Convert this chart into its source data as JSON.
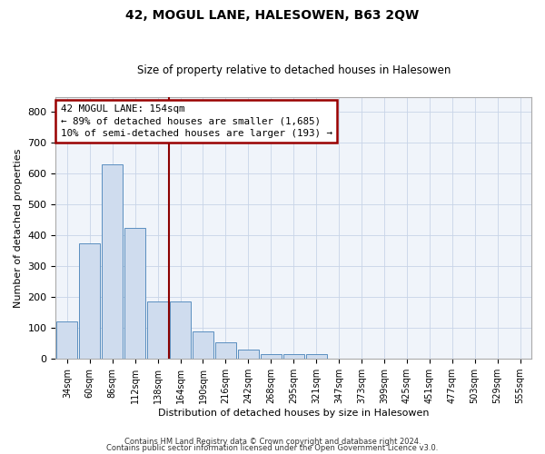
{
  "title": "42, MOGUL LANE, HALESOWEN, B63 2QW",
  "subtitle": "Size of property relative to detached houses in Halesowen",
  "xlabel": "Distribution of detached houses by size in Halesowen",
  "ylabel": "Number of detached properties",
  "bar_labels": [
    "34sqm",
    "60sqm",
    "86sqm",
    "112sqm",
    "138sqm",
    "164sqm",
    "190sqm",
    "216sqm",
    "242sqm",
    "268sqm",
    "295sqm",
    "321sqm",
    "347sqm",
    "373sqm",
    "399sqm",
    "425sqm",
    "451sqm",
    "477sqm",
    "503sqm",
    "529sqm",
    "555sqm"
  ],
  "bar_values": [
    120,
    375,
    630,
    425,
    185,
    185,
    90,
    55,
    30,
    15,
    15,
    15,
    0,
    0,
    0,
    0,
    0,
    0,
    0,
    0,
    0
  ],
  "bar_color": "#cfdcee",
  "bar_edge_color": "#5a8fc0",
  "vline_x": 4.5,
  "vline_color": "#8b0000",
  "annotation_text": "42 MOGUL LANE: 154sqm\n← 89% of detached houses are smaller (1,685)\n10% of semi-detached houses are larger (193) →",
  "annotation_box_color": "#ffffff",
  "annotation_box_edge_color": "#990000",
  "ylim": [
    0,
    850
  ],
  "yticks": [
    0,
    100,
    200,
    300,
    400,
    500,
    600,
    700,
    800
  ],
  "footer_line1": "Contains HM Land Registry data © Crown copyright and database right 2024.",
  "footer_line2": "Contains public sector information licensed under the Open Government Licence v3.0.",
  "bg_color": "#f0f4fa",
  "grid_color": "#c8d4e8",
  "title_fontsize": 10,
  "subtitle_fontsize": 8.5
}
